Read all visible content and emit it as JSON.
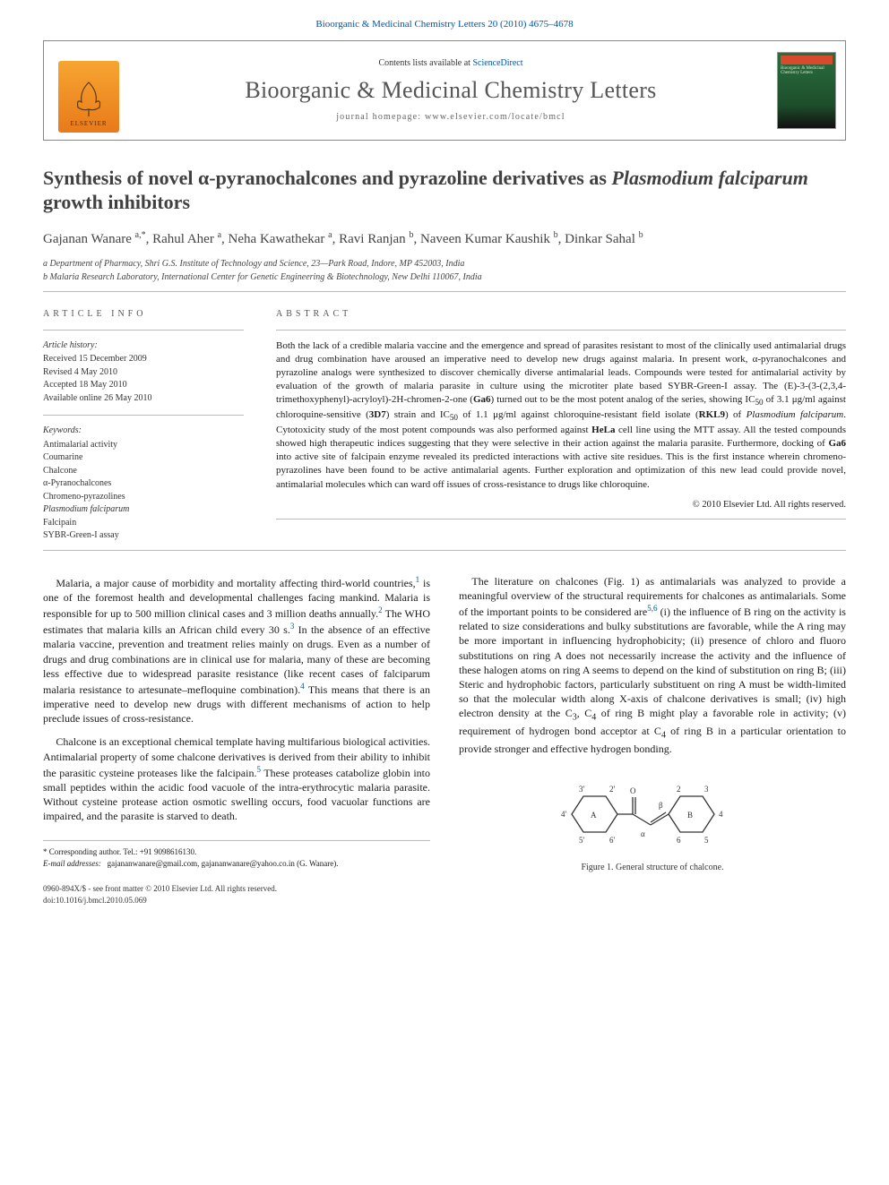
{
  "citation": "Bioorganic & Medicinal Chemistry Letters 20 (2010) 4675–4678",
  "header": {
    "contents_prefix": "Contents lists available at ",
    "contents_link": "ScienceDirect",
    "journal_name": "Bioorganic & Medicinal Chemistry Letters",
    "homepage_label": "journal homepage: www.elsevier.com/locate/bmcl",
    "publisher": "ELSEVIER"
  },
  "title_html": "Synthesis of novel α-pyranochalcones and pyrazoline derivatives as <em>Plasmodium falciparum</em> growth inhibitors",
  "authors_html": "Gajanan Wanare <sup>a,*</sup>, Rahul Aher <sup>a</sup>, Neha Kawathekar <sup>a</sup>, Ravi Ranjan <sup>b</sup>, Naveen Kumar Kaushik <sup>b</sup>, Dinkar Sahal <sup>b</sup>",
  "affiliations": [
    "a Department of Pharmacy, Shri G.S. Institute of Technology and Science, 23—Park Road, Indore, MP 452003, India",
    "b Malaria Research Laboratory, International Center for Genetic Engineering & Biotechnology, New Delhi 110067, India"
  ],
  "article_info_label": "ARTICLE INFO",
  "abstract_label": "ABSTRACT",
  "history_label": "Article history:",
  "history": [
    "Received 15 December 2009",
    "Revised 4 May 2010",
    "Accepted 18 May 2010",
    "Available online 26 May 2010"
  ],
  "keywords_label": "Keywords:",
  "keywords": [
    "Antimalarial activity",
    "Coumarine",
    "Chalcone",
    "α-Pyranochalcones",
    "Chromeno-pyrazolines",
    "Plasmodium falciparum",
    "Falcipain",
    "SYBR-Green-I assay"
  ],
  "abstract_html": "Both the lack of a credible malaria vaccine and the emergence and spread of parasites resistant to most of the clinically used antimalarial drugs and drug combination have aroused an imperative need to develop new drugs against malaria. In present work, α-pyranochalcones and pyrazoline analogs were synthesized to discover chemically diverse antimalarial leads. Compounds were tested for antimalarial activity by evaluation of the growth of malaria parasite in culture using the microtiter plate based SYBR-Green-I assay. The (E)-3-(3-(2,3,4-trimethoxyphenyl)-acryloyl)-2H-chromen-2-one (<b>Ga6</b>) turned out to be the most potent analog of the series, showing IC<sub>50</sub> of 3.1 μg/ml against chloroquine-sensitive (<b>3D7</b>) strain and IC<sub>50</sub> of 1.1 μg/ml against chloroquine-resistant field isolate (<b>RKL9</b>) of <em>Plasmodium falciparum</em>. Cytotoxicity study of the most potent compounds was also performed against <b>HeLa</b> cell line using the MTT assay. All the tested compounds showed high therapeutic indices suggesting that they were selective in their action against the malaria parasite. Furthermore, docking of <b>Ga6</b> into active site of falcipain enzyme revealed its predicted interactions with active site residues. This is the first instance wherein chromeno-pyrazolines have been found to be active antimalarial agents. Further exploration and optimization of this new lead could provide novel, antimalarial molecules which can ward off issues of cross-resistance to drugs like chloroquine.",
  "copyright": "© 2010 Elsevier Ltd. All rights reserved.",
  "body": {
    "left": [
      "Malaria, a major cause of morbidity and mortality affecting third-world countries,<sup>1</sup> is one of the foremost health and developmental challenges facing mankind. Malaria is responsible for up to 500 million clinical cases and 3 million deaths annually.<sup>2</sup> The WHO estimates that malaria kills an African child every 30 s.<sup>3</sup> In the absence of an effective malaria vaccine, prevention and treatment relies mainly on drugs. Even as a number of drugs and drug combinations are in clinical use for malaria, many of these are becoming less effective due to widespread parasite resistance (like recent cases of falciparum malaria resistance to artesunate–mefloquine combination).<sup>4</sup> This means that there is an imperative need to develop new drugs with different mechanisms of action to help preclude issues of cross-resistance.",
      "Chalcone is an exceptional chemical template having multifarious biological activities. Antimalarial property of some chalcone derivatives is derived from their ability to inhibit the parasitic cysteine proteases like the falcipain.<sup>5</sup> These proteases catabolize globin into small peptides within the acidic food vacuole of the intra-erythrocytic malaria parasite. Without cysteine protease action osmotic swelling occurs, food vacuolar functions are impaired, and the parasite is starved to death."
    ],
    "right": [
      "The literature on chalcones (Fig. 1) as antimalarials was analyzed to provide a meaningful overview of the structural requirements for chalcones as antimalarials. Some of the important points to be considered are<sup>5,6</sup> (i) the influence of B ring on the activity is related to size considerations and bulky substitutions are favorable, while the A ring may be more important in influencing hydrophobicity; (ii) presence of chloro and fluoro substitutions on ring A does not necessarily increase the activity and the influence of these halogen atoms on ring A seems to depend on the kind of substitution on ring B; (iii) Steric and hydrophobic factors, particularly substituent on ring A must be width-limited so that the molecular width along X-axis of chalcone derivatives is small; (iv) high electron density at the C<sub>3</sub>, C<sub>4</sub> of ring B might play a favorable role in activity; (v) requirement of hydrogen bond acceptor at C<sub>4</sub> of ring B in a particular orientation to provide stronger and effective hydrogen bonding."
    ]
  },
  "figure1": {
    "caption": "Figure 1. General structure of chalcone.",
    "ringA_label": "A",
    "ringB_label": "B",
    "ring_labels": [
      "2'",
      "3'",
      "4'",
      "5'",
      "6'",
      "α",
      "β",
      "2",
      "3",
      "4",
      "5",
      "6"
    ],
    "colors": {
      "stroke": "#333333",
      "text": "#333333"
    }
  },
  "footnotes": {
    "corr": "* Corresponding author. Tel.: +91 9098616130.",
    "email_label": "E-mail addresses:",
    "emails": "gajananwanare@gmail.com, gajananwanare@yahoo.co.in (G. Wanare)."
  },
  "doi_block": {
    "line1": "0960-894X/$ - see front matter © 2010 Elsevier Ltd. All rights reserved.",
    "line2": "doi:10.1016/j.bmcl.2010.05.069"
  }
}
